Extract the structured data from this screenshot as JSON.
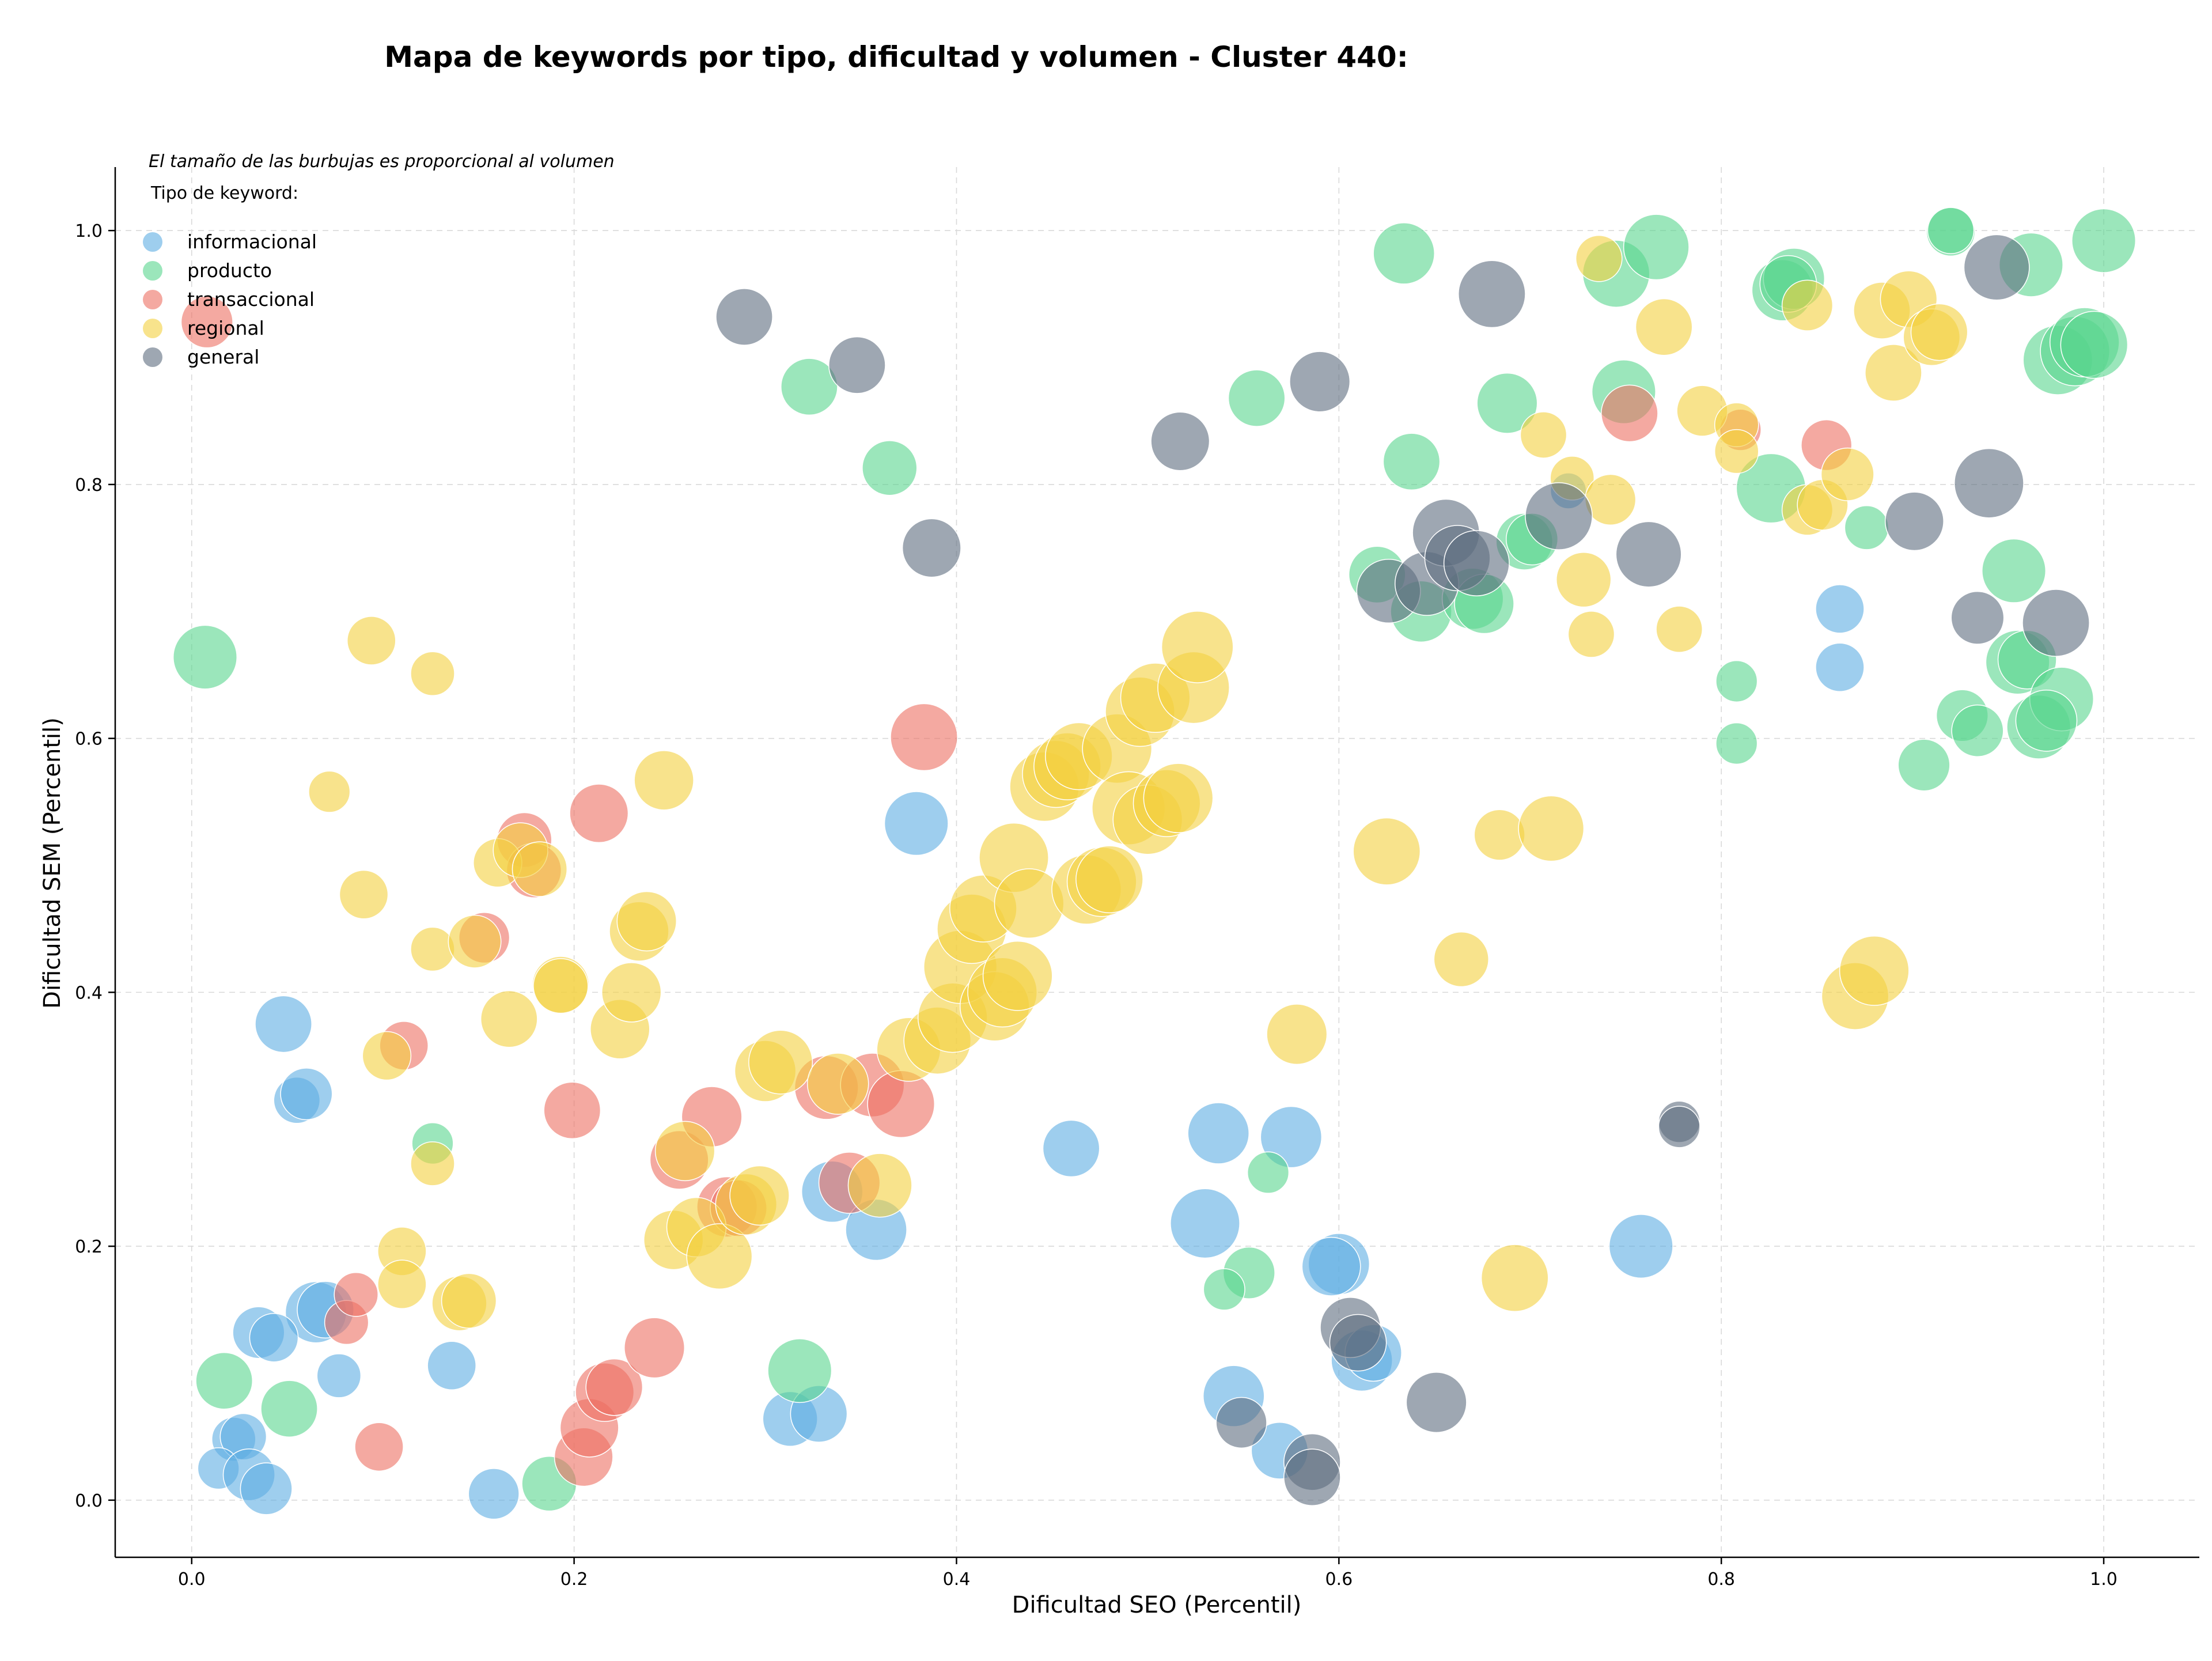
{
  "chart_data": {
    "type": "scatter",
    "title": "Mapa de keywords por tipo, dificultad y volumen - Cluster 440:",
    "xlabel": "Dificultad SEO (Percentil)",
    "ylabel": "Dificultad SEM (Percentil)",
    "xlim": [
      -0.04,
      1.05
    ],
    "ylim": [
      -0.045,
      1.05
    ],
    "xticks": [
      "0.0",
      "0.2",
      "0.4",
      "0.6",
      "0.8",
      "1.0"
    ],
    "yticks": [
      "0.0",
      "0.2",
      "0.4",
      "0.6",
      "0.8",
      "1.0"
    ],
    "grid": true,
    "legend_position": "top-left",
    "note": "El tamaño de las burbujas es proporcional al volumen",
    "legend_title": "Tipo de keyword:",
    "series": [
      {
        "name": "informacional",
        "color": "#5dade2",
        "points": [
          [
            0.048,
            0.375,
            3
          ],
          [
            0.055,
            0.315,
            2
          ],
          [
            0.06,
            0.32,
            2.5
          ],
          [
            0.065,
            0.148,
            3.5
          ],
          [
            0.07,
            0.15,
            3
          ],
          [
            0.035,
            0.132,
            2.5
          ],
          [
            0.043,
            0.128,
            2.2
          ],
          [
            0.077,
            0.098,
            1.8
          ],
          [
            0.136,
            0.106,
            2.2
          ],
          [
            0.022,
            0.048,
            1.8
          ],
          [
            0.027,
            0.05,
            2
          ],
          [
            0.014,
            0.025,
            1.6
          ],
          [
            0.03,
            0.02,
            2.5
          ],
          [
            0.039,
            0.009,
            2.5
          ],
          [
            0.158,
            0.005,
            2.4
          ],
          [
            0.313,
            0.064,
            2.8
          ],
          [
            0.328,
            0.068,
            3
          ],
          [
            0.335,
            0.243,
            3.5
          ],
          [
            0.358,
            0.213,
            3.5
          ],
          [
            0.379,
            0.533,
            3.8
          ],
          [
            0.46,
            0.277,
            3
          ],
          [
            0.53,
            0.218,
            4.5
          ],
          [
            0.537,
            0.289,
            3.5
          ],
          [
            0.575,
            0.286,
            3.5
          ],
          [
            0.545,
            0.082,
            3.5
          ],
          [
            0.569,
            0.039,
            3
          ],
          [
            0.6,
            0.186,
            3.5
          ],
          [
            0.596,
            0.184,
            3.2
          ],
          [
            0.612,
            0.11,
            3.5
          ],
          [
            0.618,
            0.116,
            3
          ],
          [
            0.758,
            0.2,
            3.8
          ],
          [
            0.72,
            0.795,
            1.2
          ],
          [
            0.862,
            0.702,
            2.2
          ],
          [
            0.862,
            0.656,
            2.2
          ]
        ]
      },
      {
        "name": "producto",
        "color": "#58d68d",
        "points": [
          [
            0.007,
            0.664,
            3.8
          ],
          [
            0.017,
            0.094,
            3
          ],
          [
            0.051,
            0.072,
            3
          ],
          [
            0.126,
            0.281,
            1.6
          ],
          [
            0.187,
            0.013,
            2.8
          ],
          [
            0.318,
            0.102,
            3.8
          ],
          [
            0.323,
            0.877,
            3
          ],
          [
            0.365,
            0.813,
            2.8
          ],
          [
            0.553,
            0.179,
            2.5
          ],
          [
            0.54,
            0.166,
            1.6
          ],
          [
            0.563,
            0.258,
            1.6
          ],
          [
            0.557,
            0.868,
            3
          ],
          [
            0.634,
            0.982,
            3.5
          ],
          [
            0.638,
            0.818,
            3
          ],
          [
            0.62,
            0.729,
            3
          ],
          [
            0.643,
            0.7,
            3.5
          ],
          [
            0.67,
            0.71,
            3.5
          ],
          [
            0.676,
            0.706,
            3.3
          ],
          [
            0.688,
            0.864,
            3.4
          ],
          [
            0.697,
            0.755,
            3
          ],
          [
            0.701,
            0.757,
            2.5
          ],
          [
            0.745,
            0.966,
            4.2
          ],
          [
            0.766,
            0.987,
            4
          ],
          [
            0.749,
            0.873,
            3.8
          ],
          [
            0.826,
            0.797,
            4.5
          ],
          [
            0.832,
            0.953,
            3.5
          ],
          [
            0.838,
            0.962,
            3.5
          ],
          [
            0.835,
            0.958,
            3
          ],
          [
            0.808,
            0.645,
            1.6
          ],
          [
            0.808,
            0.596,
            1.6
          ],
          [
            0.876,
            0.766,
            1.8
          ],
          [
            0.906,
            0.579,
            2.5
          ],
          [
            0.92,
            0.999,
            2.2
          ],
          [
            0.92,
            1.0,
            2
          ],
          [
            0.926,
            0.618,
            2.5
          ],
          [
            0.934,
            0.606,
            2.5
          ],
          [
            0.953,
            0.732,
            3.8
          ],
          [
            0.955,
            0.66,
            3.8
          ],
          [
            0.96,
            0.662,
            3.2
          ],
          [
            0.962,
            0.973,
            3.8
          ],
          [
            0.966,
            0.609,
            3.8
          ],
          [
            0.978,
            0.631,
            3.8
          ],
          [
            0.97,
            0.614,
            3.5
          ],
          [
            0.976,
            0.898,
            4.5
          ],
          [
            0.985,
            0.905,
            4.5
          ],
          [
            0.99,
            0.912,
            4.5
          ],
          [
            0.995,
            0.91,
            4.2
          ],
          [
            1.0,
            0.992,
            3.8
          ]
        ]
      },
      {
        "name": "transaccional",
        "color": "#ec7063",
        "points": [
          [
            0.008,
            0.928,
            2.5
          ],
          [
            0.081,
            0.14,
            1.8
          ],
          [
            0.086,
            0.162,
            1.8
          ],
          [
            0.098,
            0.042,
            2.2
          ],
          [
            0.111,
            0.358,
            2.2
          ],
          [
            0.153,
            0.443,
            2.4
          ],
          [
            0.174,
            0.52,
            2.8
          ],
          [
            0.179,
            0.496,
            2.8
          ],
          [
            0.199,
            0.307,
            3
          ],
          [
            0.213,
            0.541,
            3.2
          ],
          [
            0.205,
            0.034,
            3.2
          ],
          [
            0.208,
            0.057,
            3.2
          ],
          [
            0.216,
            0.085,
            3.2
          ],
          [
            0.221,
            0.089,
            3
          ],
          [
            0.242,
            0.12,
            3.4
          ],
          [
            0.255,
            0.268,
            3.2
          ],
          [
            0.272,
            0.302,
            3.4
          ],
          [
            0.28,
            0.231,
            3.4
          ],
          [
            0.286,
            0.23,
            3
          ],
          [
            0.332,
            0.325,
            3.8
          ],
          [
            0.344,
            0.25,
            3.5
          ],
          [
            0.356,
            0.327,
            3.8
          ],
          [
            0.371,
            0.312,
            4.2
          ],
          [
            0.383,
            0.601,
            4.2
          ],
          [
            0.752,
            0.856,
            3
          ],
          [
            0.81,
            0.843,
            1.6
          ],
          [
            0.855,
            0.831,
            2.4
          ]
        ]
      },
      {
        "name": "regional",
        "color": "#f4d03f",
        "points": [
          [
            0.072,
            0.558,
            1.6
          ],
          [
            0.09,
            0.477,
            2.2
          ],
          [
            0.094,
            0.677,
            2.2
          ],
          [
            0.102,
            0.35,
            2.2
          ],
          [
            0.11,
            0.196,
            2.2
          ],
          [
            0.11,
            0.17,
            2.2
          ],
          [
            0.126,
            0.651,
            1.8
          ],
          [
            0.126,
            0.265,
            1.8
          ],
          [
            0.126,
            0.434,
            1.8
          ],
          [
            0.14,
            0.155,
            2.8
          ],
          [
            0.145,
            0.157,
            2.8
          ],
          [
            0.148,
            0.44,
            2.6
          ],
          [
            0.16,
            0.502,
            2.2
          ],
          [
            0.166,
            0.379,
            3
          ],
          [
            0.172,
            0.512,
            2.8
          ],
          [
            0.182,
            0.497,
            2.8
          ],
          [
            0.193,
            0.406,
            3
          ],
          [
            0.193,
            0.405,
            2.8
          ],
          [
            0.224,
            0.371,
            3.3
          ],
          [
            0.23,
            0.4,
            3.3
          ],
          [
            0.234,
            0.448,
            3.3
          ],
          [
            0.238,
            0.456,
            3.3
          ],
          [
            0.247,
            0.567,
            3.3
          ],
          [
            0.252,
            0.205,
            3.3
          ],
          [
            0.258,
            0.275,
            3.3
          ],
          [
            0.264,
            0.215,
            3.3
          ],
          [
            0.276,
            0.192,
            4
          ],
          [
            0.29,
            0.233,
            3.5
          ],
          [
            0.297,
            0.24,
            3.3
          ],
          [
            0.3,
            0.338,
            3.5
          ],
          [
            0.308,
            0.345,
            3.8
          ],
          [
            0.338,
            0.328,
            3.5
          ],
          [
            0.36,
            0.248,
            3.8
          ],
          [
            0.375,
            0.355,
            3.8
          ],
          [
            0.39,
            0.362,
            4.2
          ],
          [
            0.398,
            0.38,
            4.5
          ],
          [
            0.402,
            0.42,
            5
          ],
          [
            0.408,
            0.45,
            4.5
          ],
          [
            0.414,
            0.466,
            4.2
          ],
          [
            0.42,
            0.389,
            4.5
          ],
          [
            0.424,
            0.4,
            4.5
          ],
          [
            0.43,
            0.506,
            4.5
          ],
          [
            0.432,
            0.413,
            4.5
          ],
          [
            0.438,
            0.47,
            4.5
          ],
          [
            0.446,
            0.562,
            4.5
          ],
          [
            0.452,
            0.572,
            4.2
          ],
          [
            0.458,
            0.578,
            4.2
          ],
          [
            0.464,
            0.586,
            4.2
          ],
          [
            0.468,
            0.481,
            4.5
          ],
          [
            0.476,
            0.487,
            4.5
          ],
          [
            0.48,
            0.489,
            4.2
          ],
          [
            0.484,
            0.592,
            4.5
          ],
          [
            0.49,
            0.545,
            5
          ],
          [
            0.496,
            0.621,
            4.5
          ],
          [
            0.5,
            0.536,
            4.5
          ],
          [
            0.504,
            0.632,
            4.5
          ],
          [
            0.51,
            0.549,
            4.2
          ],
          [
            0.516,
            0.553,
            4.5
          ],
          [
            0.524,
            0.64,
            4.8
          ],
          [
            0.526,
            0.672,
            4.8
          ],
          [
            0.578,
            0.367,
            3.4
          ],
          [
            0.625,
            0.511,
            4.2
          ],
          [
            0.664,
            0.426,
            2.8
          ],
          [
            0.684,
            0.524,
            2.4
          ],
          [
            0.692,
            0.175,
            4.2
          ],
          [
            0.711,
            0.529,
            4
          ],
          [
            0.707,
            0.839,
            2
          ],
          [
            0.722,
            0.805,
            1.8
          ],
          [
            0.728,
            0.725,
            2.8
          ],
          [
            0.732,
            0.682,
            2
          ],
          [
            0.736,
            0.978,
            2
          ],
          [
            0.742,
            0.788,
            2.4
          ],
          [
            0.77,
            0.924,
            3
          ],
          [
            0.778,
            0.686,
            2
          ],
          [
            0.79,
            0.858,
            2.4
          ],
          [
            0.808,
            0.847,
            1.8
          ],
          [
            0.808,
            0.826,
            1.8
          ],
          [
            0.845,
            0.941,
            2.4
          ],
          [
            0.845,
            0.78,
            2.4
          ],
          [
            0.853,
            0.784,
            2.4
          ],
          [
            0.866,
            0.808,
            2.6
          ],
          [
            0.87,
            0.397,
            4.2
          ],
          [
            0.88,
            0.417,
            4.5
          ],
          [
            0.884,
            0.937,
            3
          ],
          [
            0.89,
            0.888,
            3
          ],
          [
            0.898,
            0.946,
            3
          ],
          [
            0.91,
            0.916,
            3
          ],
          [
            0.914,
            0.92,
            3
          ]
        ]
      },
      {
        "name": "general",
        "color": "#5d6d7e",
        "points": [
          [
            0.289,
            0.932,
            3
          ],
          [
            0.348,
            0.894,
            3
          ],
          [
            0.387,
            0.75,
            3.2
          ],
          [
            0.517,
            0.834,
            3.2
          ],
          [
            0.59,
            0.881,
            3.4
          ],
          [
            0.549,
            0.061,
            2.4
          ],
          [
            0.586,
            0.03,
            3
          ],
          [
            0.586,
            0.018,
            3
          ],
          [
            0.606,
            0.136,
            3.4
          ],
          [
            0.61,
            0.124,
            3
          ],
          [
            0.651,
            0.077,
            3.4
          ],
          [
            0.626,
            0.716,
            3.8
          ],
          [
            0.646,
            0.722,
            3.8
          ],
          [
            0.656,
            0.762,
            4.2
          ],
          [
            0.662,
            0.742,
            4
          ],
          [
            0.672,
            0.738,
            4
          ],
          [
            0.68,
            0.95,
            4.2
          ],
          [
            0.715,
            0.775,
            4.2
          ],
          [
            0.762,
            0.745,
            4
          ],
          [
            0.778,
            0.298,
            1.6
          ],
          [
            0.778,
            0.294,
            1.6
          ],
          [
            0.901,
            0.771,
            3.2
          ],
          [
            0.934,
            0.695,
            2.6
          ],
          [
            0.94,
            0.801,
            4.5
          ],
          [
            0.944,
            0.971,
            4
          ],
          [
            0.975,
            0.691,
            4.2
          ]
        ]
      }
    ]
  }
}
